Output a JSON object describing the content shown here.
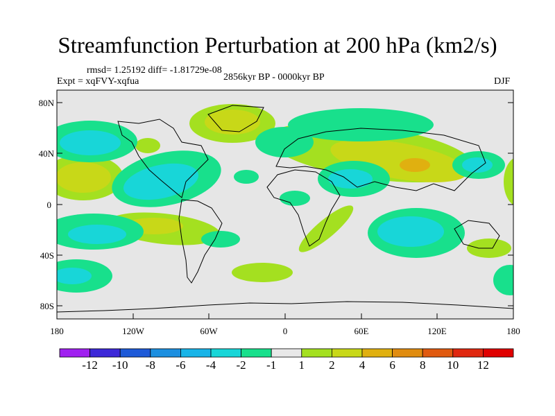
{
  "title": "Streamfunction Perturbation at 200 hPa (km2/s)",
  "stats": "rmsd= 1.25192 diff= -1.81729e-08",
  "experiment": "Expt = xqFVY-xqfua",
  "period": "2856kyr BP - 0000kyr BP",
  "season": "DJF",
  "map": {
    "lat_ticks": [
      "80N",
      "40N",
      "0",
      "40S",
      "80S"
    ],
    "lon_ticks": [
      "180",
      "120W",
      "60W",
      "0",
      "60E",
      "120E",
      "180"
    ]
  },
  "colorbar": {
    "labels": [
      "-12",
      "-10",
      "-8",
      "-6",
      "-4",
      "-2",
      "-1",
      "1",
      "2",
      "4",
      "6",
      "8",
      "10",
      "12"
    ],
    "colors": [
      "#a020f0",
      "#3d28d8",
      "#1e5ad8",
      "#1c8fe0",
      "#18b4e8",
      "#18d6d8",
      "#18e08c",
      "#e8e8e8",
      "#a4e020",
      "#c8d818",
      "#e0b010",
      "#e08c10",
      "#e05a10",
      "#e02810",
      "#e00000"
    ]
  },
  "fill_colors": {
    "ocean": "#e6e6e6",
    "pos1": "#a4e020",
    "pos2": "#c8d818",
    "pos3": "#e0b010",
    "neg1": "#18e08c",
    "neg2": "#18d6d8",
    "neg3": "#18b4e8"
  }
}
